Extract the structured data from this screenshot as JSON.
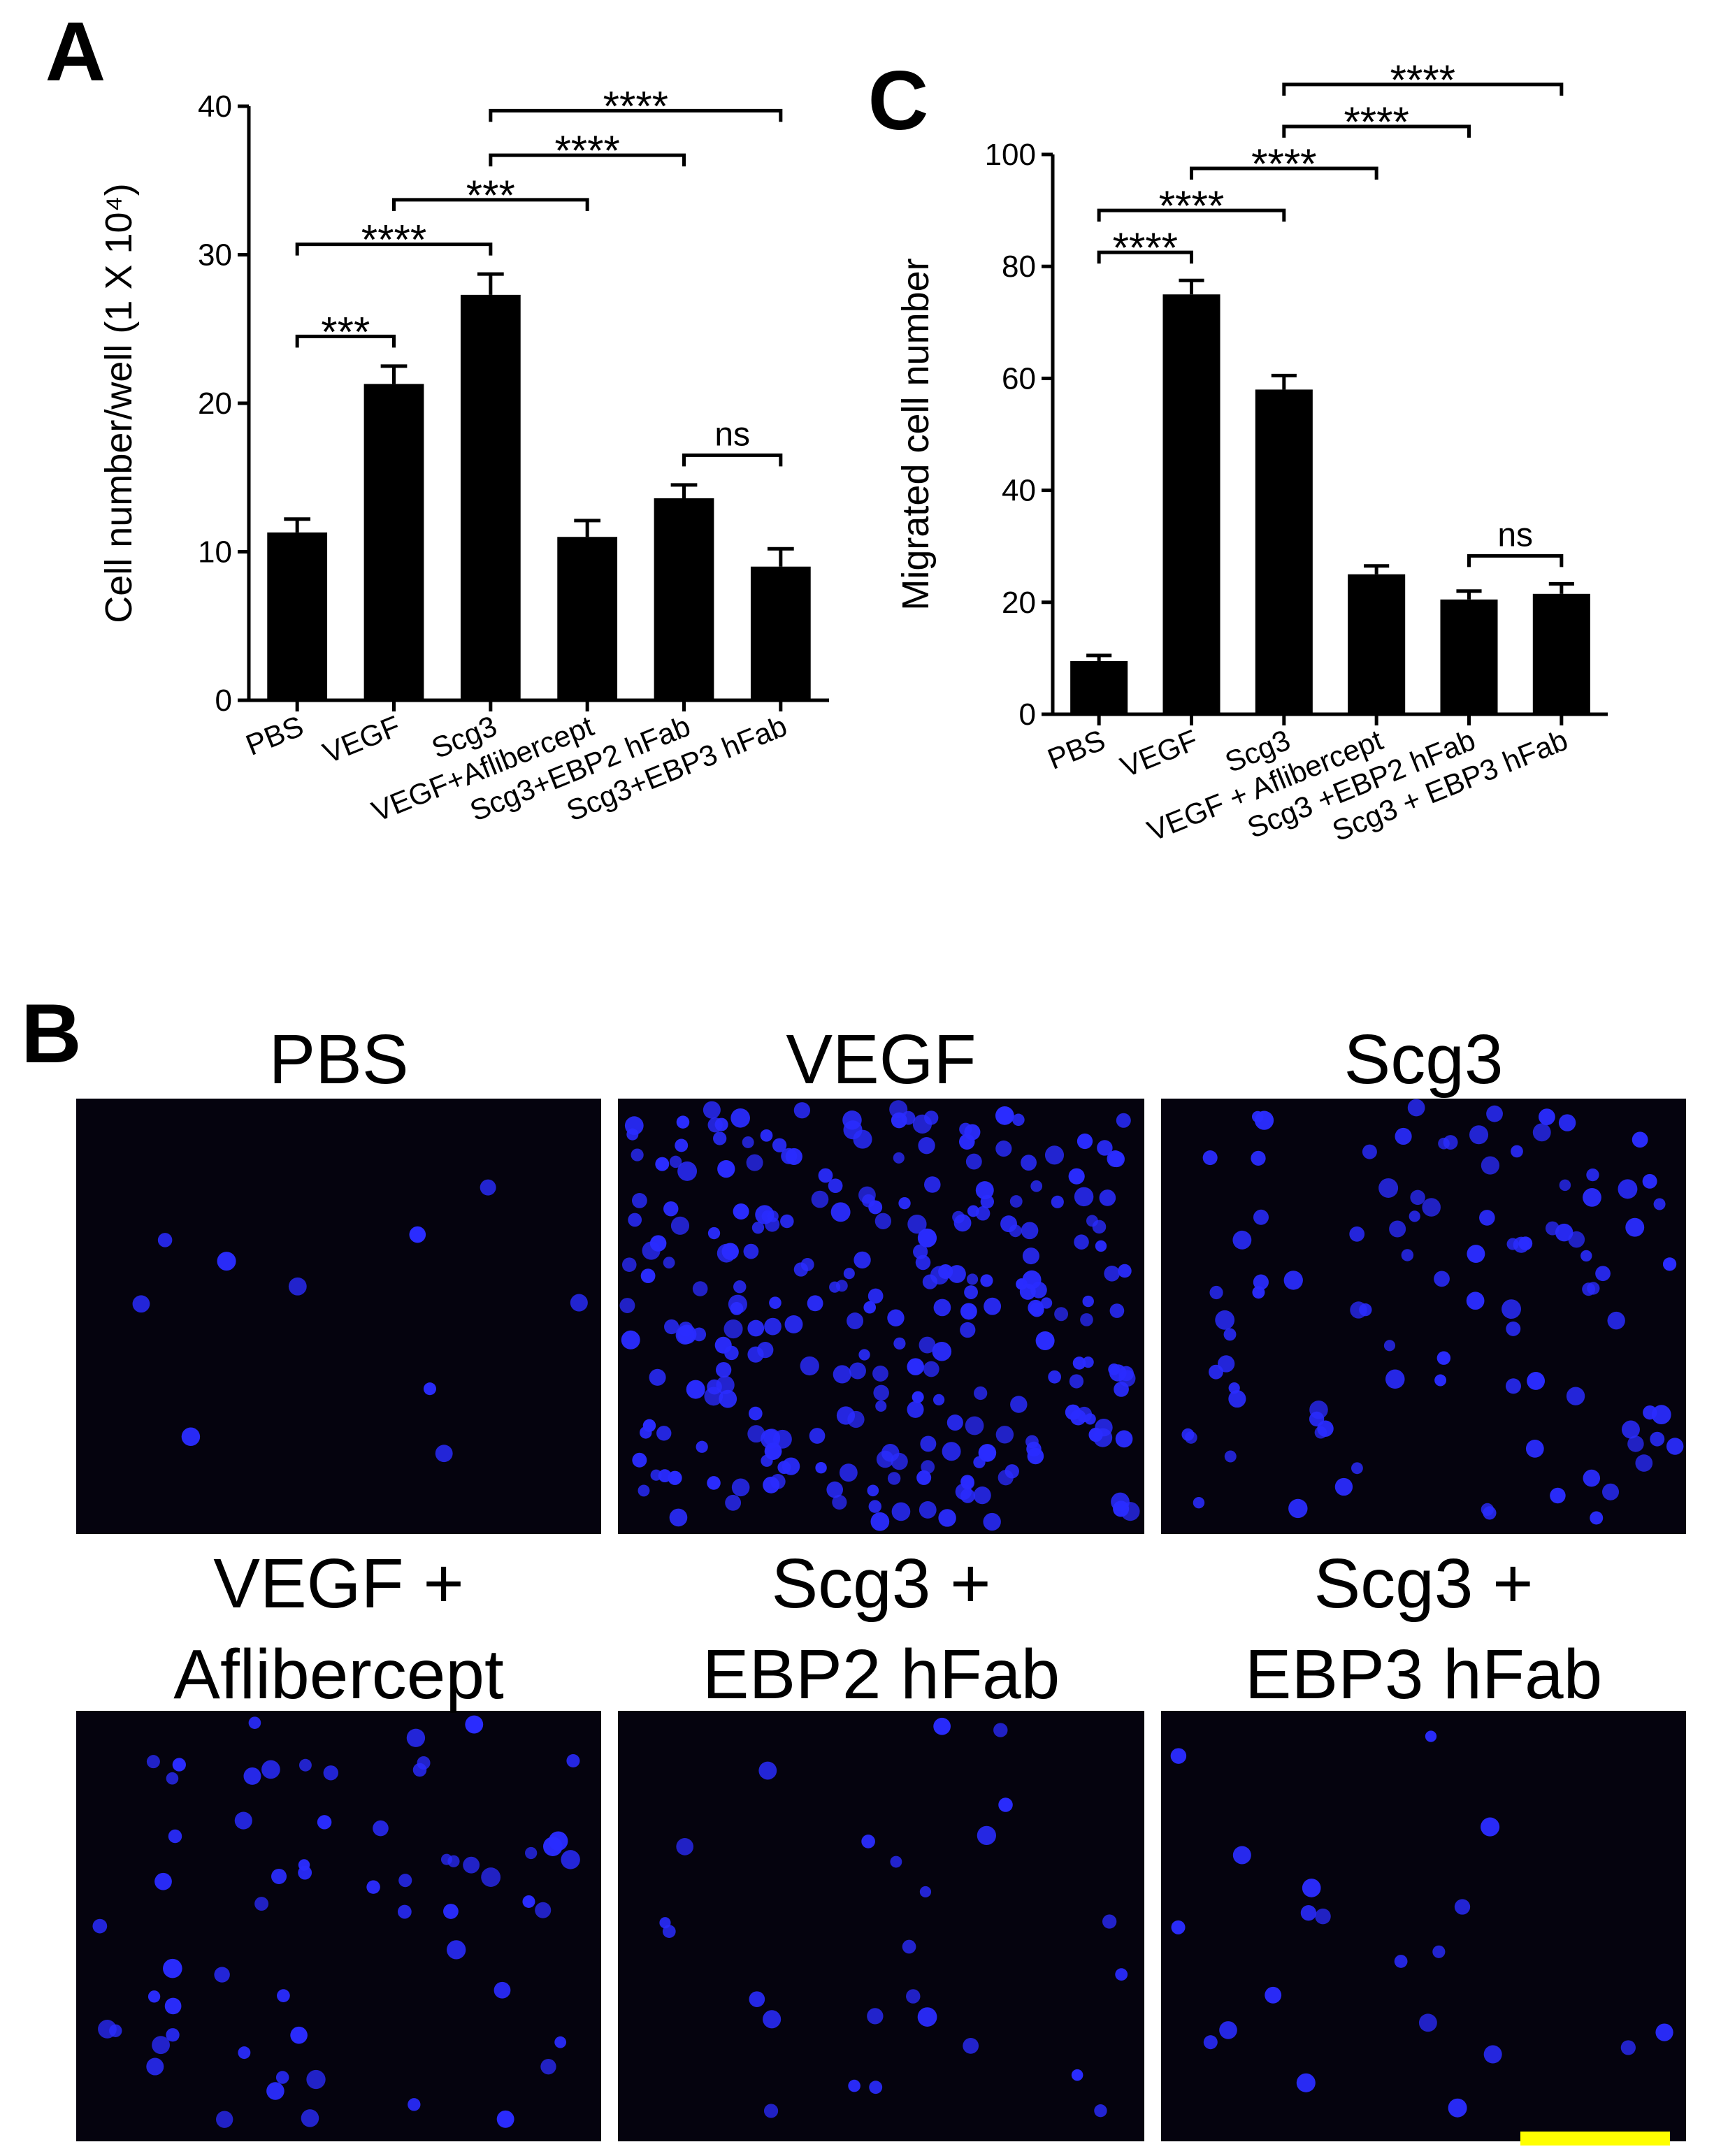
{
  "chart_data": [
    {
      "type": "bar",
      "panel_label": "A",
      "y_label": "Cell number/well (1 X 10⁴)",
      "categories": [
        "PBS",
        "VEGF",
        "Scg3",
        "VEGF+Aflibercept",
        "Scg3+EBP2 hFab",
        "Scg3+EBP3 hFab"
      ],
      "values": [
        11.3,
        21.3,
        27.3,
        11.0,
        13.6,
        9.0
      ],
      "errors": [
        0.9,
        1.2,
        1.4,
        1.1,
        0.9,
        1.2
      ],
      "color": "#000000",
      "ylim": [
        0,
        40
      ],
      "yticks": [
        0,
        10,
        20,
        30,
        40
      ],
      "comparisons": [
        {
          "between": [
            "Scg3+EBP2 hFab",
            "Scg3+EBP3 hFab"
          ],
          "label": "ns"
        },
        {
          "between": [
            "PBS",
            "VEGF"
          ],
          "label": "***"
        },
        {
          "between": [
            "PBS",
            "Scg3"
          ],
          "label": "****"
        },
        {
          "between": [
            "VEGF",
            "VEGF+Aflibercept"
          ],
          "label": "***"
        },
        {
          "between": [
            "Scg3",
            "Scg3+EBP2 hFab"
          ],
          "label": "****"
        },
        {
          "between": [
            "Scg3",
            "Scg3+EBP3 hFab"
          ],
          "label": "****"
        }
      ]
    },
    {
      "type": "bar",
      "panel_label": "C",
      "y_label": "Migrated cell number",
      "categories": [
        "PBS",
        "VEGF",
        "Scg3",
        "VEGF + Aflibercept",
        "Scg3 +EBP2 hFab",
        "Scg3 + EBP3 hFab"
      ],
      "values": [
        9.5,
        75,
        58,
        25,
        20.5,
        21.5
      ],
      "errors": [
        1,
        2.5,
        2.5,
        1.5,
        1.5,
        1.8
      ],
      "color": "#000000",
      "ylim": [
        0,
        100
      ],
      "yticks": [
        0,
        20,
        40,
        60,
        80,
        100
      ],
      "comparisons": [
        {
          "between": [
            "Scg3 +EBP2 hFab",
            "Scg3 + EBP3 hFab"
          ],
          "label": "ns"
        },
        {
          "between": [
            "PBS",
            "VEGF"
          ],
          "label": "****"
        },
        {
          "between": [
            "PBS",
            "Scg3"
          ],
          "label": "****"
        },
        {
          "between": [
            "VEGF",
            "VEGF + Aflibercept"
          ],
          "label": "****"
        },
        {
          "between": [
            "Scg3",
            "Scg3 +EBP2 hFab"
          ],
          "label": "****"
        },
        {
          "between": [
            "Scg3",
            "Scg3 + EBP3 hFab"
          ],
          "label": "****"
        }
      ]
    }
  ],
  "panel_b": {
    "panel_label": "B",
    "images": [
      {
        "title": [
          "PBS"
        ]
      },
      {
        "title": [
          "VEGF"
        ]
      },
      {
        "title": [
          "Scg3"
        ]
      },
      {
        "title": [
          "VEGF +",
          "Aflibercept"
        ]
      },
      {
        "title": [
          "Scg3 +",
          "EBP2 hFab"
        ]
      },
      {
        "title": [
          "Scg3 +",
          "EBP3 hFab"
        ]
      }
    ]
  }
}
